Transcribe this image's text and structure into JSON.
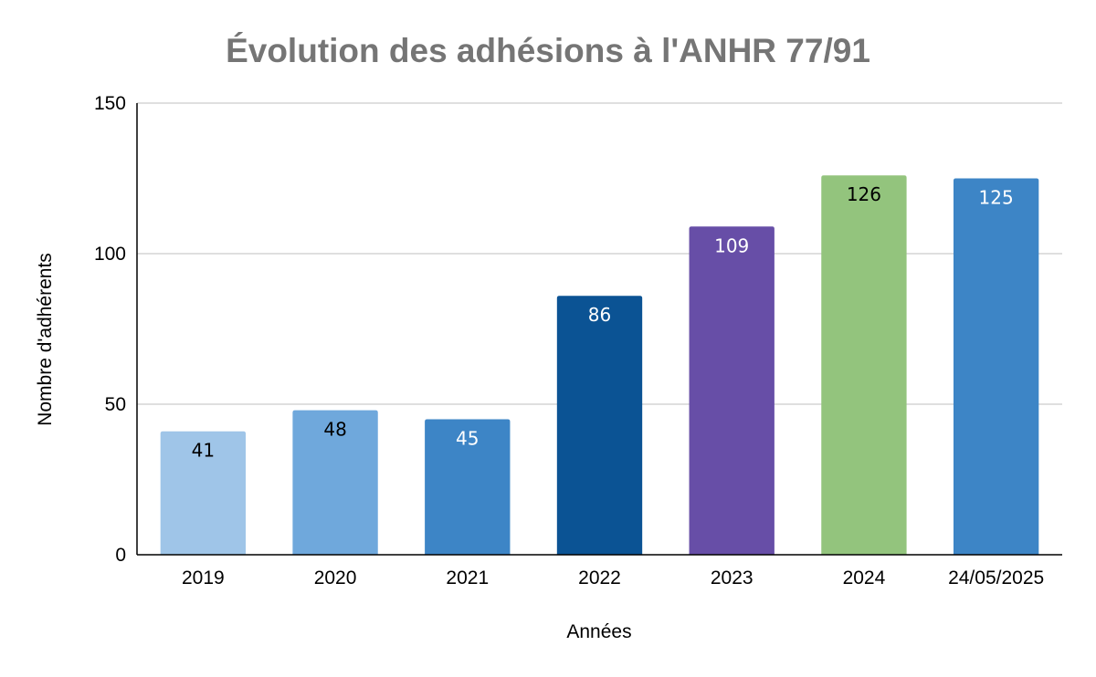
{
  "chart_data": {
    "type": "bar",
    "title": "Évolution des adhésions à l'ANHR 77/91",
    "xlabel": "Années",
    "ylabel": "Nombre d'adhérents",
    "categories": [
      "2019",
      "2020",
      "2021",
      "2022",
      "2023",
      "2024",
      "24/05/2025"
    ],
    "values": [
      41,
      48,
      45,
      86,
      109,
      126,
      125
    ],
    "data_labels": [
      "41",
      "48",
      "45",
      "86",
      "109",
      "126",
      "125"
    ],
    "bar_colors": [
      "#9fc5e8",
      "#6fa8dc",
      "#3d85c6",
      "#0b5394",
      "#674ea7",
      "#93c47d",
      "#3d85c6"
    ],
    "label_colors": [
      "#000000",
      "#000000",
      "#ffffff",
      "#ffffff",
      "#ffffff",
      "#000000",
      "#ffffff"
    ],
    "ylim": [
      0,
      150
    ],
    "yticks": [
      0,
      50,
      100,
      150
    ],
    "ytick_labels": [
      "0",
      "50",
      "100",
      "150"
    ],
    "grid": true,
    "legend": "none"
  }
}
